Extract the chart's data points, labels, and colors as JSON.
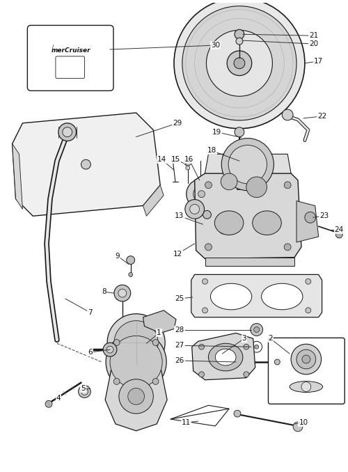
{
  "bg_color": "#ffffff",
  "fig_width": 5.0,
  "fig_height": 6.78,
  "dpi": 100,
  "label_fontsize": 7.5,
  "line_color": "#1a1a1a",
  "label_color": "#111111"
}
